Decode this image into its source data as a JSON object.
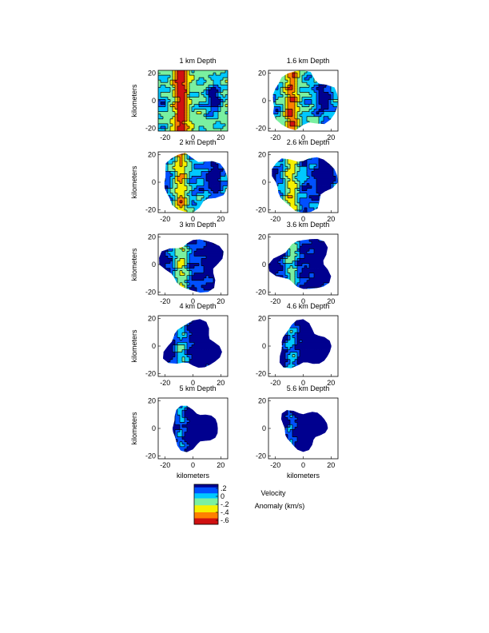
{
  "chart_data": {
    "type": "heatmap",
    "units_label": "kilometers",
    "axis_ticks": [
      "-20",
      "0",
      "20"
    ],
    "xlim": [
      -25,
      25
    ],
    "ylim": [
      -22,
      22
    ],
    "panels": [
      {
        "title": "1 km  Depth",
        "level": 0.7
      },
      {
        "title": "1.6 km  Depth",
        "level": 0.62
      },
      {
        "title": "2 km  Depth",
        "level": 0.55
      },
      {
        "title": "2.6 km  Depth",
        "level": 0.48
      },
      {
        "title": "3 km  Depth",
        "level": 0.42
      },
      {
        "title": "3.6 km  Depth",
        "level": 0.36
      },
      {
        "title": "4 km  Depth",
        "level": 0.3
      },
      {
        "title": "4.6 km  Depth",
        "level": 0.26
      },
      {
        "title": "5 km  Depth",
        "level": 0.22
      },
      {
        "title": "5.6 km  Depth",
        "level": 0.2
      }
    ],
    "colorbar": {
      "tick_labels": [
        ".2",
        "0",
        "-.2",
        "-.4",
        "-.6"
      ],
      "tick_values": [
        0.2,
        0.0,
        -0.2,
        -0.4,
        -0.6
      ],
      "range": [
        -0.7,
        0.3
      ],
      "label_line1": "Velocity",
      "label_line2": "Anomaly (km/s)"
    },
    "colors": [
      "#00008f",
      "#0050ff",
      "#00c8ff",
      "#7af0a0",
      "#f5f000",
      "#ff8000",
      "#d01010"
    ]
  }
}
